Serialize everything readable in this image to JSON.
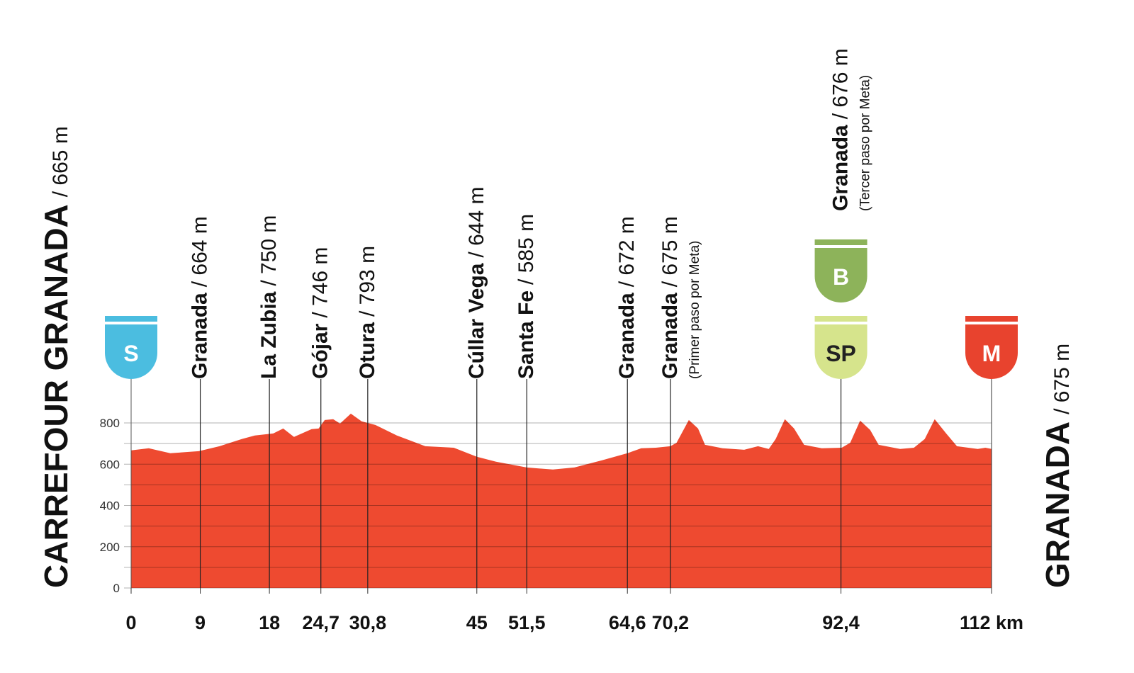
{
  "chart_data": {
    "type": "area",
    "color": "#ee4a30",
    "start_title": {
      "name": "CARREFOUR GRANADA",
      "altitude": "/ 665 m"
    },
    "finish_title": {
      "name": "GRANADA",
      "altitude": "/ 675 m"
    },
    "x": [
      0,
      2.3,
      5.1,
      8.8,
      11.5,
      14.4,
      16.1,
      18.5,
      19.8,
      21.2,
      23.5,
      24.4,
      25.2,
      26.3,
      27.2,
      28.6,
      30.0,
      31.8,
      34.6,
      38.3,
      42.0,
      45,
      47.5,
      51.5,
      54.9,
      57.7,
      61.3,
      64.6,
      66.4,
      68.3,
      70.2,
      71.0,
      72.6,
      73.8,
      74.7,
      77.0,
      79.8,
      81.6,
      83.0,
      83.9,
      85.1,
      86.3,
      87.6,
      89.9,
      92.5,
      93.6,
      94.9,
      96.2,
      97.3,
      100.1,
      101.9,
      103.3,
      104.6,
      106.1,
      107.5,
      110.2,
      111.2,
      112
    ],
    "values": [
      667,
      677,
      653,
      663,
      687,
      722,
      739,
      749,
      773,
      732,
      770,
      773,
      814,
      818,
      797,
      845,
      808,
      790,
      739,
      687,
      680,
      636,
      612,
      584,
      574,
      584,
      619,
      653,
      677,
      680,
      687,
      704,
      814,
      773,
      694,
      677,
      670,
      687,
      674,
      722,
      818,
      773,
      694,
      677,
      680,
      704,
      811,
      766,
      694,
      674,
      680,
      722,
      818,
      749,
      687,
      674,
      680,
      674
    ],
    "xlim": [
      0,
      112
    ],
    "ylim": [
      0,
      800
    ],
    "yticks": [
      0,
      200,
      400,
      600,
      800
    ],
    "minor_yticks": [
      100,
      300,
      500,
      700
    ],
    "xticks": [
      0,
      9,
      18,
      {
        "value": 24.7,
        "label": "24,7"
      },
      {
        "value": 30.8,
        "label": "30,8"
      },
      45,
      {
        "value": 51.5,
        "label": "51,5"
      },
      {
        "value": 64.6,
        "label": "64,6"
      },
      {
        "value": 70.2,
        "label": "70,2"
      },
      {
        "value": 92.4,
        "label": "92,4"
      },
      {
        "value": 112,
        "label": "112 km"
      }
    ],
    "waypoints": [
      {
        "km": 9,
        "name": "Granada",
        "altitude": "/ 664 m"
      },
      {
        "km": 18,
        "name": "La Zubia",
        "altitude": "/ 750 m"
      },
      {
        "km": 24.7,
        "name": "Gójar",
        "altitude": "/ 746 m"
      },
      {
        "km": 30.8,
        "name": "Otura",
        "altitude": "/ 793 m"
      },
      {
        "km": 45,
        "name": "Cúllar Vega",
        "altitude": "/ 644 m"
      },
      {
        "km": 51.5,
        "name": "Santa Fe",
        "altitude": "/ 585 m"
      },
      {
        "km": 64.6,
        "name": "Granada",
        "altitude": "/ 672 m"
      },
      {
        "km": 70.2,
        "name": "Granada",
        "altitude": "/ 675 m",
        "note": "(Primer paso por Meta)"
      },
      {
        "km": 92.4,
        "name": "Granada",
        "altitude": "/ 676 m",
        "note": "(Tercer paso por Meta)"
      }
    ],
    "markers": [
      {
        "km": 0,
        "label": "S",
        "color": "#4bbde0"
      },
      {
        "km": 92.4,
        "label": "SP",
        "color": "#d6e48c"
      },
      {
        "km": 92.4,
        "label": "B",
        "color": "#8db35a"
      },
      {
        "km": 112,
        "label": "M",
        "color": "#e8432e"
      }
    ]
  }
}
